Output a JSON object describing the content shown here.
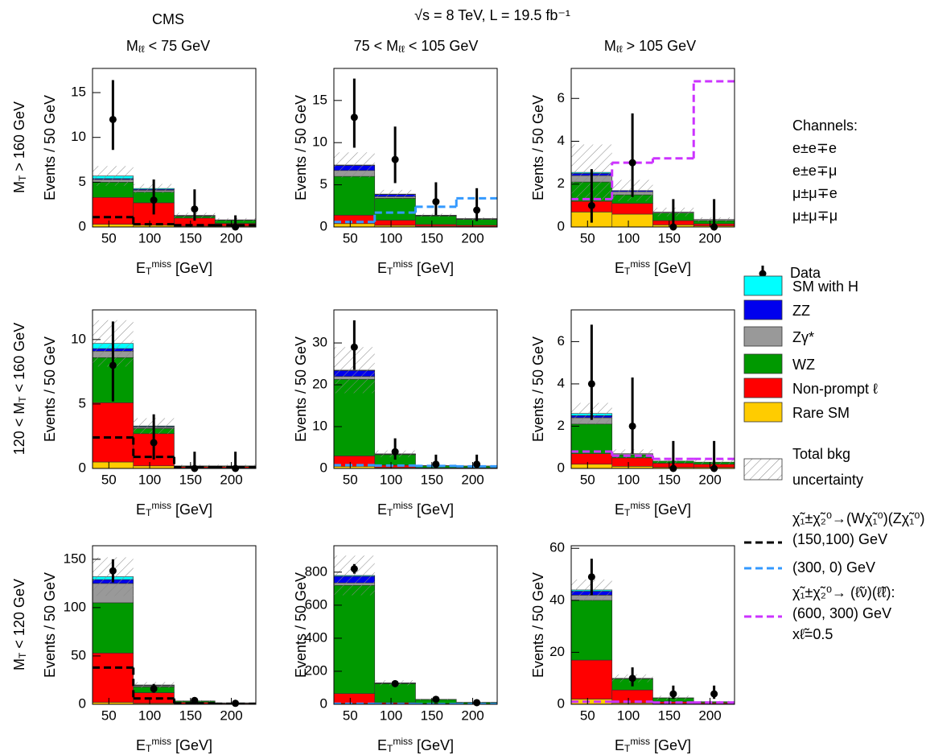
{
  "header": {
    "experiment": "CMS",
    "energy": "√s = 8 TeV, L = 19.5 fb⁻¹"
  },
  "columns": [
    [
      {
        "t": "M"
      },
      {
        "sub": "ℓℓ"
      },
      {
        "t": " < 75 GeV"
      }
    ],
    [
      {
        "t": "75 < M"
      },
      {
        "sub": "ℓℓ"
      },
      {
        "t": " < 105 GeV"
      }
    ],
    [
      {
        "t": "M"
      },
      {
        "sub": "ℓℓ"
      },
      {
        "t": " > 105 GeV"
      }
    ]
  ],
  "rows": [
    [
      {
        "t": "M"
      },
      {
        "sub": "T"
      },
      {
        "t": " > 160 GeV"
      }
    ],
    [
      {
        "t": "120 < M"
      },
      {
        "sub": "T"
      },
      {
        "t": " < 160 GeV"
      }
    ],
    [
      {
        "t": "M"
      },
      {
        "sub": "T"
      },
      {
        "t": " < 120 GeV"
      }
    ]
  ],
  "channels": {
    "title": "Channels:",
    "items": [
      "e±e∓e",
      "e±e∓μ",
      "μ±μ∓e",
      "μ±μ∓μ"
    ]
  },
  "legend": {
    "data": "Data",
    "components": [
      {
        "name": "Rare SM",
        "color": "#ffcc00"
      },
      {
        "name": "Non-prompt ℓ",
        "color": "#ff0000"
      },
      {
        "name": "WZ",
        "color": "#009900"
      },
      {
        "name": "Zγ*",
        "color": "#999999"
      },
      {
        "name": "ZZ",
        "color": "#0000ee"
      },
      {
        "name": "SM with H",
        "color": "#00ffff"
      }
    ],
    "uncertainty": [
      "Total bkg",
      "uncertainty"
    ],
    "signals": [
      {
        "color": "#000000",
        "label": [
          "χ̃₁±χ̃₂⁰→(Wχ̃₁⁰)(Zχ̃₁⁰):",
          "(150,100) GeV"
        ]
      },
      {
        "color": "#3399ff",
        "label": [
          "(300, 0) GeV"
        ]
      },
      {
        "color": "#cc33ff",
        "label": [
          "χ̃₁±χ̃₂⁰→ (ℓ̃ν)(ℓ̃ℓ):",
          "(600, 300) GeV",
          "xℓ̃=0.5"
        ]
      }
    ]
  },
  "chart_data": [
    {
      "type": "histogram",
      "xlabel": [
        {
          "t": "E"
        },
        {
          "sub": "T"
        },
        {
          "sup": "miss"
        },
        {
          "t": " [GeV]"
        }
      ],
      "ylabel": "Events / 50 GeV",
      "bins": [
        30,
        80,
        130,
        180,
        230
      ],
      "xlim": [
        30,
        230
      ],
      "xticks": [
        50,
        100,
        150,
        200
      ],
      "ylim": [
        0,
        17.7
      ],
      "yticks": [
        0,
        5,
        10,
        15
      ],
      "stack": [
        [
          0.3,
          0.2,
          0.1,
          0.1
        ],
        [
          3.0,
          2.5,
          0.9,
          0.3
        ],
        [
          1.7,
          1.2,
          0.2,
          0.35
        ],
        [
          0.3,
          0.2,
          0.05,
          0.03
        ],
        [
          0.1,
          0.1,
          0.02,
          0.02
        ],
        [
          0.3,
          0.1,
          0.03,
          0
        ]
      ],
      "uncertainty": [
        1.1,
        0.5,
        0.3,
        0.2
      ],
      "values": [
        12,
        3,
        2,
        0
      ],
      "err_low": [
        3.4,
        1.6,
        1.3,
        0
      ],
      "err_high": [
        4.4,
        2.3,
        2.2,
        1.3
      ],
      "signals": [
        [
          1.1,
          0.3,
          0.2,
          0.2
        ],
        null,
        null
      ]
    },
    {
      "type": "histogram",
      "xlabel": [
        {
          "t": "E"
        },
        {
          "sub": "T"
        },
        {
          "sup": "miss"
        },
        {
          "t": " [GeV]"
        }
      ],
      "ylabel": "Events / 50 GeV",
      "bins": [
        30,
        80,
        130,
        180,
        230
      ],
      "xlim": [
        30,
        230
      ],
      "xticks": [
        50,
        100,
        150,
        200
      ],
      "ylim": [
        0,
        18.8
      ],
      "yticks": [
        0,
        5,
        10,
        15
      ],
      "stack": [
        [
          0.4,
          0.2,
          0.1,
          0.05
        ],
        [
          1.0,
          0.6,
          0.2,
          0.15
        ],
        [
          4.6,
          2.6,
          1.0,
          0.7
        ],
        [
          0.7,
          0.2,
          0.05,
          0.05
        ],
        [
          0.6,
          0.25,
          0.05,
          0.05
        ],
        [
          0.05,
          0.05,
          0,
          0
        ]
      ],
      "uncertainty": [
        1.5,
        0.5,
        0.2,
        0.15
      ],
      "values": [
        13,
        8,
        3,
        2
      ],
      "err_low": [
        3.6,
        2.8,
        1.6,
        1.3
      ],
      "err_high": [
        4.6,
        3.9,
        2.3,
        2.6
      ],
      "signals": [
        null,
        [
          0.6,
          1.7,
          2.4,
          3.4
        ],
        null
      ]
    },
    {
      "type": "histogram",
      "xlabel": [
        {
          "t": "E"
        },
        {
          "sub": "T"
        },
        {
          "sup": "miss"
        },
        {
          "t": " [GeV]"
        }
      ],
      "ylabel": "Events / 50 GeV",
      "bins": [
        30,
        80,
        130,
        180,
        230
      ],
      "xlim": [
        30,
        230
      ],
      "xticks": [
        50,
        100,
        150,
        200
      ],
      "ylim": [
        0,
        7.4
      ],
      "yticks": [
        0,
        2,
        4,
        6
      ],
      "stack": [
        [
          0.7,
          0.6,
          0.1,
          0.05
        ],
        [
          0.5,
          0.5,
          0.2,
          0.1
        ],
        [
          0.9,
          0.4,
          0.35,
          0.15
        ],
        [
          0.3,
          0.15,
          0.05,
          0.05
        ],
        [
          0.1,
          0.05,
          0,
          0
        ],
        [
          0.05,
          0,
          0,
          0
        ]
      ],
      "uncertainty": [
        1.3,
        0.5,
        0.2,
        0.1
      ],
      "values": [
        1,
        3,
        0,
        0
      ],
      "err_low": [
        0.8,
        1.6,
        0,
        0
      ],
      "err_high": [
        1.7,
        2.3,
        1.3,
        1.3
      ],
      "signals": [
        null,
        null,
        [
          1.3,
          3.0,
          3.2,
          6.8
        ]
      ]
    },
    {
      "type": "histogram",
      "xlabel": [
        {
          "t": "E"
        },
        {
          "sub": "T"
        },
        {
          "sup": "miss"
        },
        {
          "t": " [GeV]"
        }
      ],
      "ylabel": "Events / 50 GeV",
      "bins": [
        30,
        80,
        130,
        180,
        230
      ],
      "xlim": [
        30,
        230
      ],
      "xticks": [
        50,
        100,
        150,
        200
      ],
      "ylim": [
        0,
        12.3
      ],
      "yticks": [
        0,
        5,
        10
      ],
      "stack": [
        [
          0.5,
          0.2,
          0.05,
          0.05
        ],
        [
          4.6,
          2.5,
          0.1,
          0.1
        ],
        [
          3.5,
          0.4,
          0.05,
          0.05
        ],
        [
          0.5,
          0.1,
          0,
          0
        ],
        [
          0.2,
          0.05,
          0,
          0
        ],
        [
          0.4,
          0.05,
          0,
          0
        ]
      ],
      "uncertainty": [
        1.8,
        0.6,
        0.1,
        0.1
      ],
      "values": [
        8,
        2,
        0,
        0
      ],
      "err_low": [
        2.8,
        1.3,
        0,
        0
      ],
      "err_high": [
        3.4,
        2.2,
        1.3,
        1.3
      ],
      "signals": [
        [
          2.4,
          0.9,
          0.1,
          0.1
        ],
        null,
        null
      ]
    },
    {
      "type": "histogram",
      "xlabel": [
        {
          "t": "E"
        },
        {
          "sub": "T"
        },
        {
          "sup": "miss"
        },
        {
          "t": " [GeV]"
        }
      ],
      "ylabel": "Events / 50 GeV",
      "bins": [
        30,
        80,
        130,
        180,
        230
      ],
      "xlim": [
        30,
        230
      ],
      "xticks": [
        50,
        100,
        150,
        200
      ],
      "ylim": [
        0,
        37.9
      ],
      "yticks": [
        0,
        10,
        20,
        30
      ],
      "stack": [
        [
          0.5,
          0.2,
          0.05,
          0.05
        ],
        [
          2.5,
          0.6,
          0.1,
          0.1
        ],
        [
          18.3,
          2.5,
          0.5,
          0.4
        ],
        [
          0.7,
          0.1,
          0.05,
          0.05
        ],
        [
          1.4,
          0.1,
          0,
          0
        ],
        [
          0.1,
          0,
          0,
          0
        ]
      ],
      "uncertainty": [
        5.5,
        0.8,
        0.2,
        0.2
      ],
      "values": [
        29,
        4,
        1,
        1
      ],
      "err_low": [
        5.4,
        1.9,
        0.8,
        0.8
      ],
      "err_high": [
        6.4,
        3.2,
        2.3,
        2.3
      ],
      "signals": [
        null,
        [
          0.8,
          0.7,
          0.6,
          0.5
        ],
        null
      ]
    },
    {
      "type": "histogram",
      "xlabel": [
        {
          "t": "E"
        },
        {
          "sub": "T"
        },
        {
          "sup": "miss"
        },
        {
          "t": " [GeV]"
        }
      ],
      "ylabel": "Events / 50 GeV",
      "bins": [
        30,
        80,
        130,
        180,
        230
      ],
      "xlim": [
        30,
        230
      ],
      "xticks": [
        50,
        100,
        150,
        200
      ],
      "ylim": [
        0,
        7.5
      ],
      "yticks": [
        0,
        2,
        4,
        6
      ],
      "stack": [
        [
          0.2,
          0.1,
          0.05,
          0.05
        ],
        [
          0.5,
          0.4,
          0.2,
          0.15
        ],
        [
          1.4,
          0.15,
          0.1,
          0.1
        ],
        [
          0.3,
          0.05,
          0,
          0
        ],
        [
          0.1,
          0,
          0,
          0
        ],
        [
          0.1,
          0,
          0,
          0
        ]
      ],
      "uncertainty": [
        0.5,
        0.2,
        0.1,
        0.1
      ],
      "values": [
        4,
        2,
        0,
        0
      ],
      "err_low": [
        1.7,
        1.3,
        0,
        0
      ],
      "err_high": [
        2.8,
        2.3,
        1.3,
        1.3
      ],
      "signals": [
        null,
        null,
        [
          0.8,
          0.6,
          0.45,
          0.45
        ]
      ]
    },
    {
      "type": "histogram",
      "xlabel": [
        {
          "t": "E"
        },
        {
          "sub": "T"
        },
        {
          "sup": "miss"
        },
        {
          "t": " [GeV]"
        }
      ],
      "ylabel": "Events / 50 GeV",
      "bins": [
        30,
        80,
        130,
        180,
        230
      ],
      "xlim": [
        30,
        230
      ],
      "xticks": [
        50,
        100,
        150,
        200
      ],
      "ylim": [
        0,
        164
      ],
      "yticks": [
        0,
        50,
        100,
        150
      ],
      "stack": [
        [
          2,
          1,
          0.5,
          0.3
        ],
        [
          51,
          11,
          1.5,
          0.6
        ],
        [
          52,
          6,
          1.3,
          0.5
        ],
        [
          20,
          1,
          0.2,
          0.1
        ],
        [
          4,
          0.5,
          0,
          0
        ],
        [
          3,
          0.5,
          0,
          0
        ]
      ],
      "uncertainty": [
        20,
        3,
        0.8,
        0.4
      ],
      "values": [
        138,
        16,
        4,
        1
      ],
      "err_low": [
        12,
        4,
        1.9,
        0.8
      ],
      "err_high": [
        12,
        5,
        3.2,
        2.3
      ],
      "signals": [
        [
          38,
          6,
          1,
          0.5
        ],
        null,
        null
      ]
    },
    {
      "type": "histogram",
      "xlabel": [
        {
          "t": "E"
        },
        {
          "sub": "T"
        },
        {
          "sup": "miss"
        },
        {
          "t": " [GeV]"
        }
      ],
      "ylabel": "Events / 50 GeV",
      "bins": [
        30,
        80,
        130,
        180,
        230
      ],
      "xlim": [
        30,
        230
      ],
      "xticks": [
        50,
        100,
        150,
        200
      ],
      "ylim": [
        0,
        960
      ],
      "yticks": [
        0,
        200,
        400,
        600,
        800
      ],
      "stack": [
        [
          5,
          2,
          1,
          0.5
        ],
        [
          60,
          8,
          3,
          2
        ],
        [
          655,
          115,
          25,
          9
        ],
        [
          15,
          2,
          1,
          0.5
        ],
        [
          40,
          3,
          0,
          0
        ],
        [
          5,
          0,
          0,
          0
        ]
      ],
      "uncertainty": [
        120,
        15,
        4,
        2
      ],
      "values": [
        820,
        125,
        30,
        10
      ],
      "err_low": [
        29,
        11,
        5,
        3
      ],
      "err_high": [
        29,
        12,
        6,
        4
      ],
      "signals": [
        null,
        [
          3,
          2,
          1,
          1
        ],
        null
      ]
    },
    {
      "type": "histogram",
      "xlabel": [
        {
          "t": "E"
        },
        {
          "sub": "T"
        },
        {
          "sup": "miss"
        },
        {
          "t": " [GeV]"
        }
      ],
      "ylabel": "Events / 50 GeV",
      "bins": [
        30,
        80,
        130,
        180,
        230
      ],
      "xlim": [
        30,
        230
      ],
      "xticks": [
        50,
        100,
        150,
        200
      ],
      "ylim": [
        0,
        61
      ],
      "yticks": [
        0,
        20,
        40,
        60
      ],
      "stack": [
        [
          2,
          0.5,
          0.3,
          0.2
        ],
        [
          15,
          5,
          0.7,
          0.4
        ],
        [
          23,
          4.3,
          1.4,
          0.4
        ],
        [
          2,
          0.2,
          0.1,
          0
        ],
        [
          1.5,
          0,
          0,
          0
        ],
        [
          0.5,
          0,
          0,
          0
        ]
      ],
      "uncertainty": [
        4,
        1.5,
        0.8,
        0.3
      ],
      "values": [
        49,
        10,
        4,
        4
      ],
      "err_low": [
        7,
        3.1,
        1.9,
        1.9
      ],
      "err_high": [
        7,
        4.2,
        3.2,
        3.2
      ],
      "signals": [
        null,
        null,
        [
          1,
          1,
          0.7,
          0.7
        ]
      ]
    }
  ]
}
